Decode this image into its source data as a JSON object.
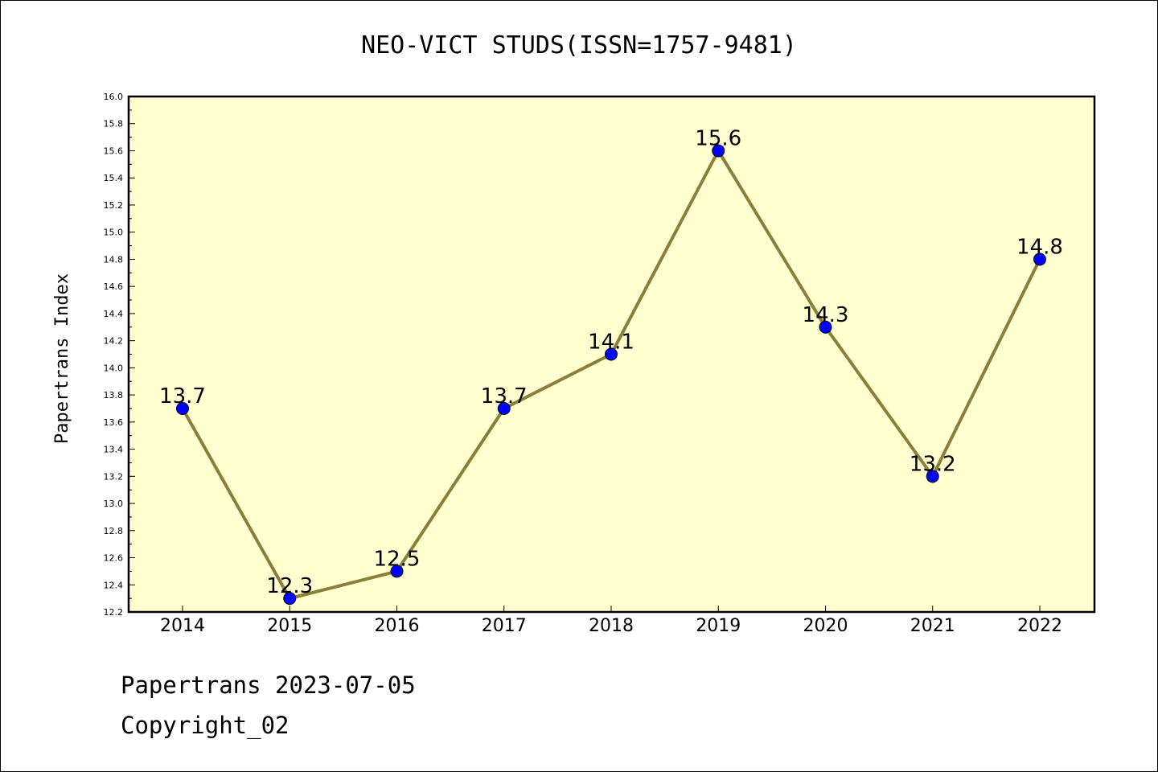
{
  "chart_data": {
    "type": "line",
    "title": "NEO-VICT STUDS(ISSN=1757-9481)",
    "xlabel": "",
    "ylabel": "Papertrans Index",
    "categories": [
      "2014",
      "2015",
      "2016",
      "2017",
      "2018",
      "2019",
      "2020",
      "2021",
      "2022"
    ],
    "values": [
      13.7,
      12.3,
      12.5,
      13.7,
      14.1,
      15.6,
      14.3,
      13.2,
      14.8
    ],
    "data_labels": [
      "13.7",
      "12.3",
      "12.5",
      "13.7",
      "14.1",
      "15.6",
      "14.3",
      "13.2",
      "14.8"
    ],
    "ylim": [
      12.2,
      16.0
    ],
    "yticks": [
      "12.2",
      "12.4",
      "12.6",
      "12.8",
      "13.0",
      "13.2",
      "13.4",
      "13.6",
      "13.8",
      "14.0",
      "14.2",
      "14.4",
      "14.6",
      "14.8",
      "15.0",
      "15.2",
      "15.4",
      "15.6",
      "15.8",
      "16.0"
    ],
    "grid": false,
    "legend": false,
    "colors": {
      "plot_background": "#ffffd0",
      "line": "#8b7d3a",
      "marker": "#0000ff"
    }
  },
  "footer": {
    "line1": "Papertrans 2023-07-05",
    "line2": "Copyright_02"
  }
}
